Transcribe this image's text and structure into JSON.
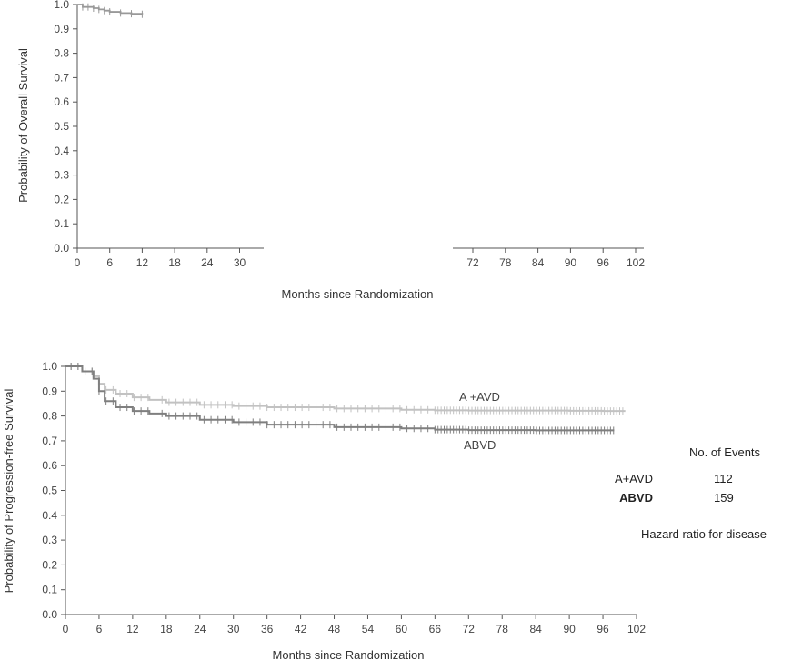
{
  "chart_data": [
    {
      "type": "line",
      "panel": "top",
      "ylabel": "Probability of Overall Survival",
      "xlabel": "Months since Randomization",
      "ylim": [
        0,
        1.0
      ],
      "xticks": [
        0,
        6,
        12,
        18,
        24,
        30,
        72,
        78,
        84,
        90,
        96,
        102
      ],
      "yticks": [
        "0.0",
        "0.1",
        "0.2",
        "0.3",
        "0.4",
        "0.5",
        "0.6",
        "0.7",
        "0.8",
        "0.9",
        "1.0"
      ],
      "grid": false,
      "series": [
        {
          "color": "#999999",
          "x": [
            0,
            1,
            2,
            3,
            4,
            5,
            6,
            8,
            10,
            12
          ],
          "y": [
            1.0,
            0.99,
            0.99,
            0.985,
            0.98,
            0.975,
            0.97,
            0.965,
            0.962,
            0.96
          ]
        }
      ]
    },
    {
      "type": "line",
      "panel": "bottom",
      "ylabel": "Probability of Progression-free Survival",
      "xlabel": "Months since Randomization",
      "xlim": [
        0,
        102
      ],
      "ylim": [
        0,
        1.0
      ],
      "xticks": [
        0,
        6,
        12,
        18,
        24,
        30,
        36,
        42,
        48,
        54,
        60,
        66,
        72,
        78,
        84,
        90,
        96,
        102
      ],
      "yticks": [
        "0.0",
        "0.1",
        "0.2",
        "0.3",
        "0.4",
        "0.5",
        "0.6",
        "0.7",
        "0.8",
        "0.9",
        "1.0"
      ],
      "grid": false,
      "series": [
        {
          "name": "A+AVD",
          "color": "#c2c2c2",
          "x": [
            0,
            3,
            5,
            6,
            7,
            9,
            12,
            15,
            18,
            24,
            30,
            36,
            48,
            60,
            66,
            72,
            84,
            90,
            96,
            100
          ],
          "y": [
            1.0,
            0.98,
            0.96,
            0.93,
            0.905,
            0.89,
            0.875,
            0.865,
            0.855,
            0.845,
            0.84,
            0.835,
            0.83,
            0.825,
            0.823,
            0.822,
            0.822,
            0.821,
            0.82,
            0.82
          ]
        },
        {
          "name": "ABVD",
          "color": "#7f7f7f",
          "x": [
            0,
            3,
            5,
            6,
            7,
            9,
            12,
            15,
            18,
            24,
            30,
            36,
            48,
            60,
            66,
            72,
            84,
            90,
            96,
            98
          ],
          "y": [
            1.0,
            0.98,
            0.95,
            0.9,
            0.86,
            0.835,
            0.82,
            0.81,
            0.8,
            0.785,
            0.775,
            0.765,
            0.755,
            0.75,
            0.745,
            0.743,
            0.742,
            0.742,
            0.742,
            0.742
          ]
        }
      ],
      "annotations": {
        "series_label_1": "A +AVD",
        "series_label_2": "ABVD"
      }
    }
  ],
  "events_table": {
    "header": "No. of Events",
    "rows": [
      {
        "label": "A+AVD",
        "value": "112"
      },
      {
        "label": "ABVD",
        "value": "159"
      }
    ],
    "hazard_text": "Hazard ratio for disease"
  }
}
